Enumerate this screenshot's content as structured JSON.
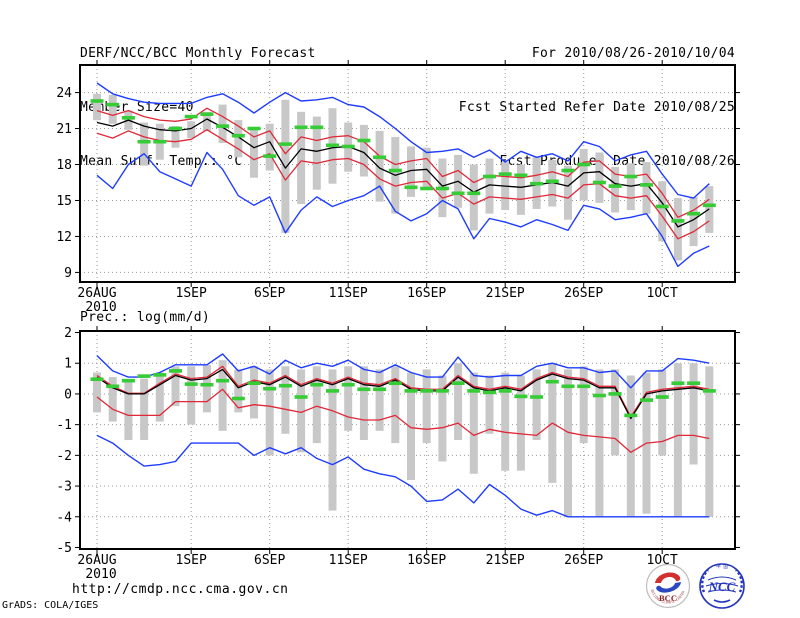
{
  "header": {
    "title": "DERF/NCC/BCC Monthly Forecast",
    "member_size": "Member Size=40",
    "forecast_period": "For 2010/08/26-2010/10/04",
    "refer_date": "Fcst Started Refer Date 2010/08/25",
    "produced_date": "Fcst Produced Date 2010/08/26"
  },
  "footer": {
    "url": "http://cmdp.ncc.cma.gov.cn",
    "credit": "GrADS: COLA/IGES"
  },
  "logos": {
    "bcc_label": "BCC",
    "bcc_ring_text": "BEIJING CLIMATE CENTER",
    "ncc_label": "NCC"
  },
  "chart_data": [
    {
      "type": "line",
      "name": "surface-temperature",
      "title": "Mean Surf. Temp.: °C",
      "x_start": "26AUG2010",
      "x_end": "4OCT2010",
      "n_days": 40,
      "grid": true,
      "legend": "none",
      "x_tick_labels": [
        "26AUG",
        "1SEP",
        "6SEP",
        "11SEP",
        "16SEP",
        "21SEP",
        "26SEP",
        "1OCT"
      ],
      "x_tick_sub": [
        "2010",
        "",
        "",
        "",
        "",
        "",
        "",
        ""
      ],
      "x_tick_days": [
        0,
        6,
        11,
        16,
        21,
        26,
        31,
        36
      ],
      "ylim": [
        8.2,
        26.3
      ],
      "yticks": [
        24,
        21,
        18,
        15,
        12,
        9
      ],
      "series": [
        {
          "name": "ensemble-max",
          "color": "#1e3cff",
          "width": 1.4,
          "values": [
            24.8,
            23.9,
            23.5,
            23.2,
            23.1,
            23.1,
            23.1,
            23.6,
            23.9,
            23.2,
            22.3,
            23.2,
            24.0,
            23.3,
            23.4,
            23.6,
            23.0,
            22.8,
            22.0,
            21.0,
            19.9,
            19.0,
            19.1,
            19.3,
            18.6,
            19.2,
            18.2,
            19.1,
            18.6,
            18.9,
            18.3,
            19.9,
            19.5,
            18.3,
            18.8,
            19.1,
            17.2,
            15.5,
            15.2,
            16.4
          ]
        },
        {
          "name": "upper-spread",
          "color": "#e02838",
          "width": 1.3,
          "values": [
            22.5,
            22.1,
            22.5,
            22.0,
            21.7,
            21.6,
            21.8,
            22.7,
            22.0,
            21.2,
            20.3,
            20.8,
            18.9,
            20.3,
            20.0,
            20.3,
            20.4,
            19.9,
            18.7,
            18.0,
            18.3,
            18.5,
            17.0,
            17.5,
            16.5,
            17.1,
            17.0,
            16.9,
            17.1,
            17.4,
            17.0,
            18.2,
            18.3,
            17.2,
            17.0,
            17.2,
            15.6,
            13.6,
            14.2,
            15.1
          ]
        },
        {
          "name": "ensemble-mean",
          "color": "#000000",
          "width": 1.3,
          "values": [
            21.5,
            21.2,
            21.7,
            21.2,
            20.9,
            20.8,
            21.0,
            21.8,
            21.1,
            20.3,
            19.4,
            19.9,
            17.7,
            19.3,
            19.1,
            19.4,
            19.5,
            19.0,
            17.7,
            17.1,
            17.5,
            17.6,
            16.2,
            16.6,
            15.7,
            16.3,
            16.2,
            16.1,
            16.3,
            16.5,
            16.2,
            17.3,
            17.4,
            16.4,
            16.2,
            16.4,
            14.8,
            12.8,
            13.4,
            14.3
          ]
        },
        {
          "name": "lower-spread",
          "color": "#e02838",
          "width": 1.3,
          "values": [
            20.6,
            20.2,
            20.8,
            20.3,
            20.0,
            19.9,
            20.1,
            20.9,
            20.1,
            19.3,
            18.4,
            18.9,
            16.7,
            18.3,
            18.1,
            18.4,
            18.5,
            18.0,
            16.8,
            16.2,
            16.5,
            16.6,
            15.2,
            15.6,
            14.7,
            15.3,
            15.2,
            15.1,
            15.3,
            15.5,
            15.2,
            16.3,
            16.4,
            15.4,
            15.2,
            15.4,
            13.7,
            11.8,
            12.4,
            13.3
          ]
        },
        {
          "name": "ensemble-min",
          "color": "#1e3cff",
          "width": 1.4,
          "values": [
            17.1,
            16.0,
            18.0,
            18.9,
            17.4,
            16.8,
            16.2,
            19.0,
            17.6,
            15.4,
            14.6,
            15.3,
            12.3,
            14.2,
            15.3,
            14.5,
            15.0,
            15.4,
            16.2,
            14.1,
            13.3,
            13.9,
            15.0,
            14.3,
            11.8,
            13.5,
            13.2,
            12.8,
            13.4,
            13.0,
            12.5,
            14.6,
            14.3,
            13.4,
            13.6,
            13.9,
            12.0,
            9.5,
            10.6,
            11.2
          ]
        }
      ],
      "bars": {
        "name": "member-spread",
        "color": "#c8c8c8",
        "ranges": [
          [
            21.7,
            23.9
          ],
          [
            21.4,
            23.8
          ],
          [
            20.9,
            22.5
          ],
          [
            17.9,
            21.5
          ],
          [
            18.4,
            21.4
          ],
          [
            19.4,
            21.2
          ],
          [
            20.2,
            21.6
          ],
          [
            20.8,
            22.4
          ],
          [
            19.8,
            23.0
          ],
          [
            18.6,
            21.7
          ],
          [
            16.9,
            21.1
          ],
          [
            17.5,
            21.4
          ],
          [
            12.3,
            23.4
          ],
          [
            14.7,
            22.4
          ],
          [
            15.9,
            22.0
          ],
          [
            16.4,
            22.7
          ],
          [
            17.4,
            21.5
          ],
          [
            17.0,
            21.3
          ],
          [
            14.9,
            20.8
          ],
          [
            13.9,
            20.3
          ],
          [
            15.3,
            19.5
          ],
          [
            15.9,
            19.4
          ],
          [
            13.6,
            18.5
          ],
          [
            14.4,
            18.8
          ],
          [
            12.5,
            18.0
          ],
          [
            13.9,
            18.5
          ],
          [
            14.2,
            18.2
          ],
          [
            13.8,
            18.0
          ],
          [
            14.3,
            18.6
          ],
          [
            14.5,
            18.4
          ],
          [
            13.4,
            17.9
          ],
          [
            15.0,
            19.3
          ],
          [
            14.8,
            19.0
          ],
          [
            14.0,
            17.8
          ],
          [
            14.2,
            18.1
          ],
          [
            13.9,
            18.2
          ],
          [
            11.6,
            16.6
          ],
          [
            10.0,
            15.2
          ],
          [
            11.2,
            15.3
          ],
          [
            12.3,
            16.2
          ]
        ]
      },
      "markers": {
        "name": "observation",
        "color": "#35cc35",
        "values": [
          23.3,
          23.0,
          21.9,
          19.9,
          19.9,
          21.0,
          22.0,
          22.2,
          21.2,
          20.4,
          21.0,
          18.7,
          19.7,
          21.1,
          21.1,
          19.6,
          19.5,
          20.0,
          18.6,
          17.5,
          16.1,
          16.0,
          16.0,
          15.6,
          15.6,
          17.0,
          17.2,
          17.1,
          16.4,
          16.6,
          17.5,
          18.0,
          16.5,
          16.2,
          17.0,
          16.3,
          14.5,
          13.3,
          13.9,
          14.6
        ]
      }
    },
    {
      "type": "line",
      "name": "precipitation",
      "title": "Prec.: log(mm/d)",
      "x_start": "26AUG2010",
      "x_end": "4OCT2010",
      "n_days": 40,
      "grid": true,
      "legend": "none",
      "x_tick_labels": [
        "26AUG",
        "1SEP",
        "6SEP",
        "11SEP",
        "16SEP",
        "21SEP",
        "26SEP",
        "1OCT"
      ],
      "x_tick_sub": [
        "2010",
        "",
        "",
        "",
        "",
        "",
        "",
        ""
      ],
      "x_tick_days": [
        0,
        6,
        11,
        16,
        21,
        26,
        31,
        36
      ],
      "ylim": [
        -5.05,
        2.05
      ],
      "yticks": [
        2,
        1,
        0,
        -1,
        -2,
        -3,
        -4,
        -5
      ],
      "series": [
        {
          "name": "ensemble-max",
          "color": "#1e3cff",
          "width": 1.4,
          "values": [
            1.25,
            0.75,
            0.55,
            0.55,
            0.7,
            0.95,
            0.95,
            0.95,
            1.3,
            0.75,
            0.9,
            0.65,
            1.1,
            0.85,
            1.0,
            0.9,
            1.1,
            0.8,
            0.7,
            0.95,
            0.7,
            0.55,
            0.55,
            1.2,
            0.6,
            0.55,
            0.6,
            0.6,
            0.9,
            1.0,
            0.85,
            0.85,
            0.7,
            0.75,
            0.2,
            0.75,
            0.75,
            1.15,
            1.1,
            1.0
          ]
        },
        {
          "name": "upper-spread",
          "color": "#e02838",
          "width": 1.3,
          "values": [
            0.6,
            0.25,
            0.02,
            0.02,
            0.35,
            0.65,
            0.5,
            0.55,
            0.9,
            0.25,
            0.45,
            0.35,
            0.6,
            0.3,
            0.5,
            0.35,
            0.55,
            0.35,
            0.3,
            0.5,
            0.2,
            0.15,
            0.15,
            0.6,
            0.25,
            0.15,
            0.25,
            0.15,
            0.5,
            0.7,
            0.55,
            0.5,
            0.25,
            0.25,
            -0.75,
            0.05,
            0.15,
            0.2,
            0.25,
            0.15
          ]
        },
        {
          "name": "ensemble-mean",
          "color": "#000000",
          "width": 1.3,
          "values": [
            0.55,
            0.2,
            0.0,
            0.0,
            0.3,
            0.6,
            0.45,
            0.5,
            0.8,
            0.2,
            0.4,
            0.3,
            0.55,
            0.25,
            0.45,
            0.3,
            0.5,
            0.3,
            0.25,
            0.45,
            0.15,
            0.1,
            0.1,
            0.55,
            0.2,
            0.1,
            0.2,
            0.1,
            0.45,
            0.65,
            0.5,
            0.45,
            0.2,
            0.2,
            -0.8,
            0.0,
            0.1,
            0.15,
            0.2,
            0.1
          ]
        },
        {
          "name": "lower-spread",
          "color": "#e02838",
          "width": 1.3,
          "values": [
            -0.1,
            -0.5,
            -0.7,
            -0.7,
            -0.7,
            -0.25,
            -0.25,
            -0.25,
            0.15,
            -0.45,
            -0.35,
            -0.4,
            -0.5,
            -0.6,
            -0.4,
            -0.55,
            -0.75,
            -0.85,
            -0.85,
            -0.7,
            -1.1,
            -1.15,
            -1.1,
            -0.95,
            -1.35,
            -1.15,
            -1.25,
            -1.3,
            -1.35,
            -0.95,
            -1.25,
            -1.35,
            -1.4,
            -1.45,
            -1.9,
            -1.6,
            -1.55,
            -1.35,
            -1.35,
            -1.45
          ]
        },
        {
          "name": "ensemble-min",
          "color": "#1e3cff",
          "width": 1.4,
          "values": [
            -1.35,
            -1.6,
            -2.0,
            -2.35,
            -2.3,
            -2.2,
            -1.6,
            -1.6,
            -1.6,
            -1.6,
            -2.0,
            -1.75,
            -1.95,
            -1.75,
            -2.1,
            -2.3,
            -2.05,
            -2.45,
            -2.6,
            -2.7,
            -3.0,
            -3.5,
            -3.45,
            -3.1,
            -3.55,
            -2.95,
            -3.3,
            -3.75,
            -3.95,
            -3.8,
            -4.0,
            -4.0,
            -4.0,
            -4.0,
            -4.0,
            -4.0,
            -4.0,
            -4.0,
            -4.0,
            -4.0
          ]
        }
      ],
      "bars": {
        "name": "member-spread",
        "color": "#c8c8c8",
        "ranges": [
          [
            -0.6,
            0.7
          ],
          [
            -0.9,
            0.55
          ],
          [
            -1.5,
            0.4
          ],
          [
            -1.5,
            0.5
          ],
          [
            -0.9,
            0.7
          ],
          [
            -0.4,
            0.9
          ],
          [
            -1.0,
            0.9
          ],
          [
            -0.6,
            0.95
          ],
          [
            -1.2,
            1.1
          ],
          [
            -0.6,
            0.8
          ],
          [
            -0.8,
            0.9
          ],
          [
            -2.0,
            0.8
          ],
          [
            -1.3,
            0.9
          ],
          [
            -1.9,
            0.8
          ],
          [
            -1.6,
            0.9
          ],
          [
            -3.8,
            0.8
          ],
          [
            -1.2,
            0.9
          ],
          [
            -1.5,
            0.9
          ],
          [
            -1.2,
            0.8
          ],
          [
            -1.6,
            0.9
          ],
          [
            -2.8,
            0.7
          ],
          [
            -1.6,
            0.8
          ],
          [
            -2.2,
            0.6
          ],
          [
            -1.5,
            1.0
          ],
          [
            -2.6,
            0.7
          ],
          [
            -1.3,
            0.6
          ],
          [
            -2.5,
            0.7
          ],
          [
            -2.5,
            0.6
          ],
          [
            -1.5,
            0.8
          ],
          [
            -2.9,
            1.0
          ],
          [
            -4.0,
            0.8
          ],
          [
            -1.6,
            0.9
          ],
          [
            -4.0,
            0.8
          ],
          [
            -2.0,
            0.8
          ],
          [
            -4.0,
            0.6
          ],
          [
            -3.9,
            0.7
          ],
          [
            -2.0,
            0.8
          ],
          [
            -4.0,
            1.0
          ],
          [
            -2.3,
            1.0
          ],
          [
            -4.0,
            0.9
          ]
        ]
      },
      "markers": {
        "name": "observation",
        "color": "#35cc35",
        "values": [
          0.48,
          0.25,
          0.43,
          0.58,
          0.62,
          0.75,
          0.32,
          0.3,
          0.43,
          -0.15,
          0.35,
          0.17,
          0.27,
          -0.1,
          0.3,
          0.1,
          0.3,
          0.15,
          0.15,
          0.35,
          0.1,
          0.1,
          0.1,
          0.35,
          0.1,
          0.05,
          0.1,
          -0.08,
          -0.1,
          0.4,
          0.25,
          0.25,
          -0.05,
          0.0,
          -0.7,
          -0.2,
          -0.1,
          0.35,
          0.35,
          0.1
        ]
      }
    }
  ]
}
